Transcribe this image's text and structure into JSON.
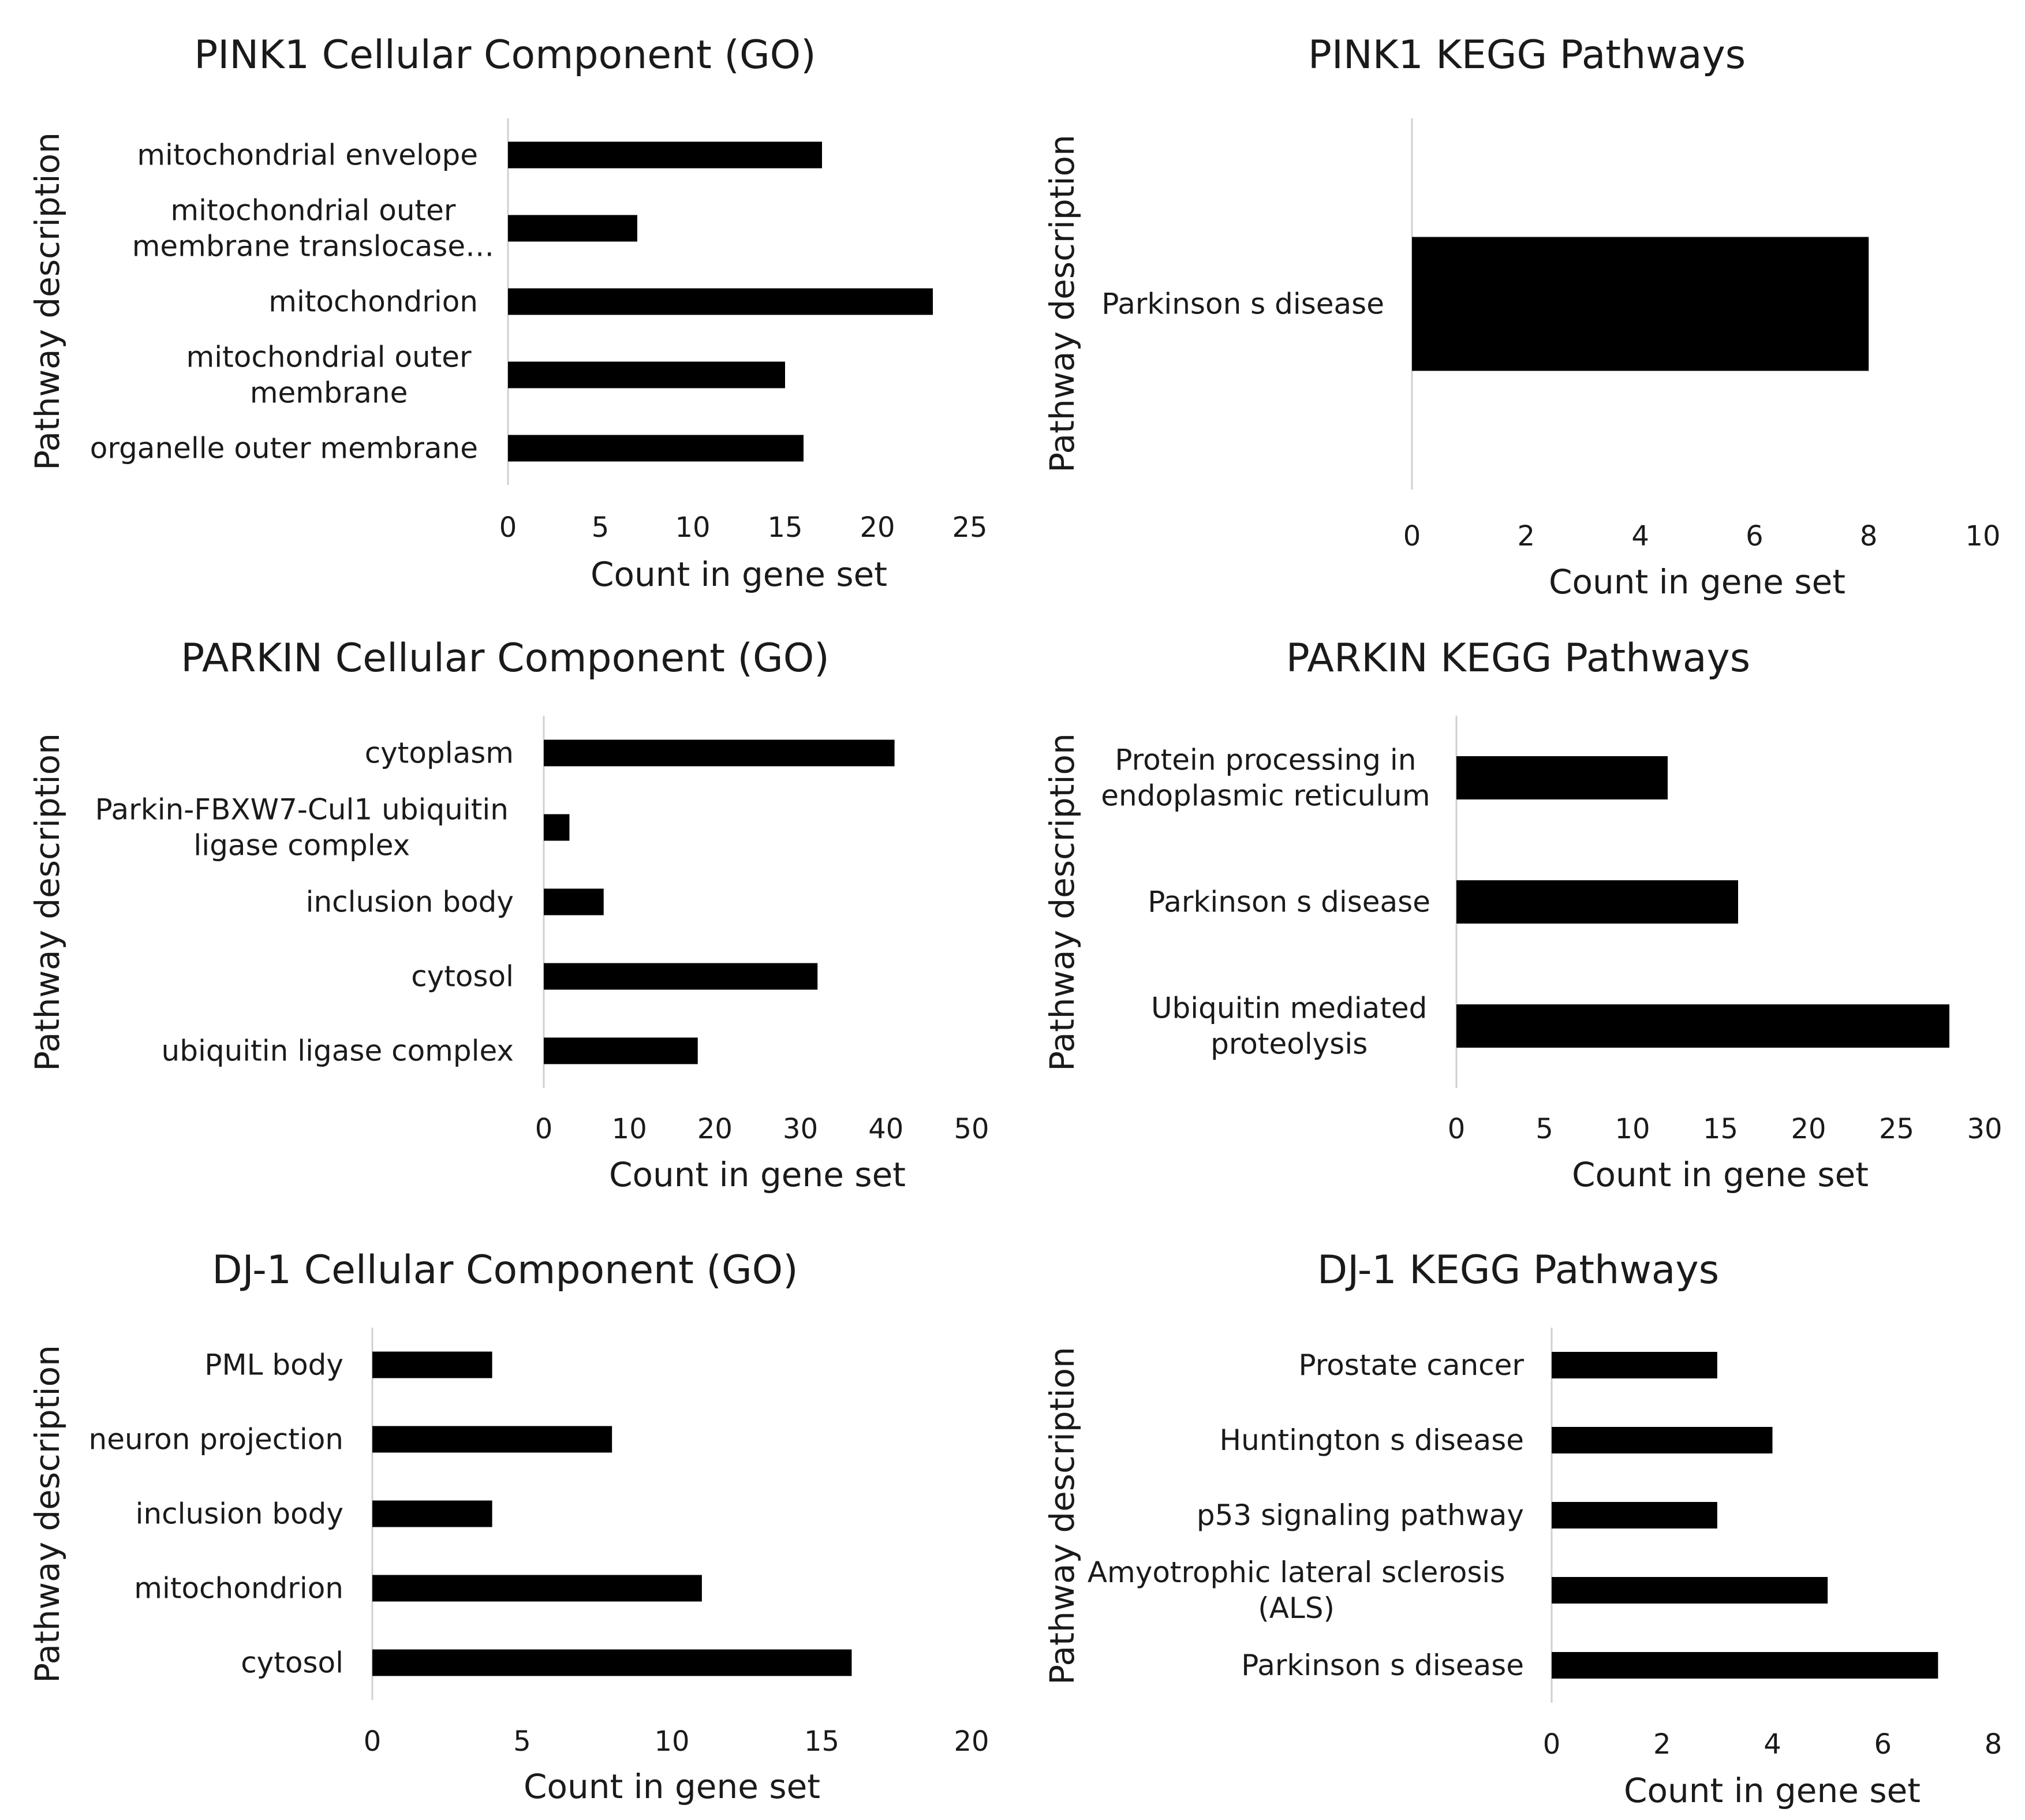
{
  "chart_data": [
    {
      "type": "bar",
      "orientation": "horizontal",
      "title": "PINK1 Cellular Component (GO)",
      "xlabel": "Count in gene set",
      "ylabel": "Pathway description",
      "xlim": [
        0,
        25
      ],
      "xticks": [
        0,
        5,
        10,
        15,
        20,
        25
      ],
      "categories": [
        [
          "mitochondrial envelope"
        ],
        [
          "mitochondrial outer",
          "membrane translocase…"
        ],
        [
          "mitochondrion"
        ],
        [
          "mitochondrial outer",
          "membrane"
        ],
        [
          "organelle outer membrane"
        ]
      ],
      "values": [
        17,
        7,
        23,
        15,
        16
      ]
    },
    {
      "type": "bar",
      "orientation": "horizontal",
      "title": "PINK1 KEGG Pathways",
      "xlabel": "Count in gene set",
      "ylabel": "Pathway description",
      "xlim": [
        0,
        10
      ],
      "xticks": [
        0,
        2,
        4,
        6,
        8,
        10
      ],
      "categories": [
        [
          "Parkinson s disease"
        ]
      ],
      "values": [
        8
      ]
    },
    {
      "type": "bar",
      "orientation": "horizontal",
      "title": "PARKIN Cellular Component (GO)",
      "xlabel": "Count in gene set",
      "ylabel": "Pathway description",
      "xlim": [
        0,
        50
      ],
      "xticks": [
        0,
        10,
        20,
        30,
        40,
        50
      ],
      "categories": [
        [
          "cytoplasm"
        ],
        [
          "Parkin-FBXW7-Cul1 ubiquitin",
          "ligase complex"
        ],
        [
          "inclusion body"
        ],
        [
          "cytosol"
        ],
        [
          "ubiquitin ligase complex"
        ]
      ],
      "values": [
        41,
        3,
        7,
        32,
        18
      ]
    },
    {
      "type": "bar",
      "orientation": "horizontal",
      "title": "PARKIN KEGG Pathways",
      "xlabel": "Count in gene set",
      "ylabel": "Pathway description",
      "xlim": [
        0,
        30
      ],
      "xticks": [
        0,
        5,
        10,
        15,
        20,
        25,
        30
      ],
      "categories": [
        [
          "Protein processing in",
          "endoplasmic reticulum"
        ],
        [
          "Parkinson s disease"
        ],
        [
          "Ubiquitin mediated",
          "proteolysis"
        ]
      ],
      "values": [
        12,
        16,
        28
      ]
    },
    {
      "type": "bar",
      "orientation": "horizontal",
      "title": "DJ-1 Cellular Component (GO)",
      "xlabel": "Count in gene set",
      "ylabel": "Pathway description",
      "xlim": [
        0,
        20
      ],
      "xticks": [
        0,
        5,
        10,
        15,
        20
      ],
      "categories": [
        [
          "PML body"
        ],
        [
          "neuron projection"
        ],
        [
          "inclusion body"
        ],
        [
          "mitochondrion"
        ],
        [
          "cytosol"
        ]
      ],
      "values": [
        4,
        8,
        4,
        11,
        16
      ]
    },
    {
      "type": "bar",
      "orientation": "horizontal",
      "title": "DJ-1 KEGG Pathways",
      "xlabel": "Count in gene set",
      "ylabel": "Pathway description",
      "xlim": [
        0,
        8
      ],
      "xticks": [
        0,
        2,
        4,
        6,
        8
      ],
      "categories": [
        [
          "Prostate cancer"
        ],
        [
          "Huntington s disease"
        ],
        [
          "p53 signaling pathway"
        ],
        [
          "Amyotrophic lateral sclerosis",
          "(ALS)"
        ],
        [
          "Parkinson s disease"
        ]
      ],
      "values": [
        3,
        4,
        3,
        5,
        7
      ]
    }
  ]
}
